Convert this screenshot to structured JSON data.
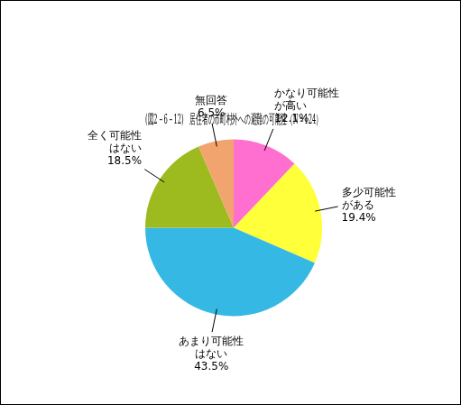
{
  "chart_data": {
    "type": "pie",
    "title": "(図2－6－12)　居住者の市町村外への避難の可能性（N＝124）",
    "categories": [
      "かなり可能性\nが高い",
      "多少可能性\nがある",
      "あまり可能性\nはない",
      "全く可能性\nはない",
      "無回答"
    ],
    "values": [
      12.1,
      19.4,
      43.5,
      18.5,
      6.5
    ],
    "value_labels": [
      "12.1%",
      "19.4%",
      "43.5%",
      "18.5%",
      "6.5%"
    ],
    "colors": [
      "#ff6fcf",
      "#ffff3a",
      "#36b8e4",
      "#9dbb1f",
      "#f2a46e"
    ],
    "data_labels": true,
    "legend": false
  }
}
